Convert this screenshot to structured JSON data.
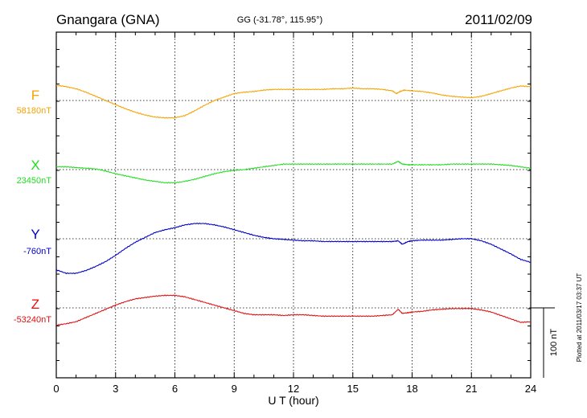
{
  "header": {
    "station": "Gnangara (GNA)",
    "coords": "GG (-31.78°, 115.95°)",
    "date": "2011/02/09"
  },
  "footer": {
    "plotted": "Plotted at 2011/03/17 03:37 UT"
  },
  "chart_data": {
    "type": "line",
    "title": "Gnangara (GNA)",
    "xlabel": "U T (hour)",
    "xlim": [
      0,
      24
    ],
    "xticks": [
      0,
      3,
      6,
      9,
      12,
      15,
      18,
      21,
      24
    ],
    "grid": true,
    "scale_bar": {
      "label": "100 nT",
      "value_nT": 100
    },
    "series": [
      {
        "name": "F",
        "baseline": "58180nT",
        "color": "#f5a300",
        "x": [
          0,
          0.5,
          1,
          1.5,
          2,
          2.5,
          3,
          3.5,
          4,
          4.5,
          5,
          5.5,
          6,
          6.5,
          7,
          7.5,
          8,
          8.5,
          9,
          9.5,
          10,
          10.5,
          11,
          11.5,
          12,
          12.5,
          13,
          13.5,
          14,
          14.5,
          15,
          15.5,
          16,
          16.5,
          17,
          17.2,
          17.4,
          17.6,
          18,
          18.5,
          19,
          19.5,
          20,
          20.5,
          21,
          21.5,
          22,
          22.5,
          23,
          23.5,
          24
        ],
        "y": [
          22,
          20,
          17,
          12,
          6,
          0,
          -6,
          -12,
          -17,
          -21,
          -24,
          -25,
          -25,
          -22,
          -15,
          -7,
          0,
          5,
          10,
          12,
          13,
          15,
          16,
          16,
          16,
          16,
          16,
          16,
          17,
          17,
          18,
          17,
          17,
          16,
          14,
          10,
          13,
          15,
          14,
          13,
          11,
          8,
          6,
          5,
          4,
          6,
          10,
          14,
          18,
          21,
          20
        ]
      },
      {
        "name": "X",
        "baseline": "23450nT",
        "color": "#22dd22",
        "x": [
          0,
          0.5,
          1,
          1.5,
          2,
          2.5,
          3,
          3.5,
          4,
          4.5,
          5,
          5.5,
          6,
          6.5,
          7,
          7.5,
          8,
          8.5,
          9,
          9.5,
          10,
          10.5,
          11,
          11.5,
          12,
          12.5,
          13,
          13.5,
          14,
          14.5,
          15,
          15.5,
          16,
          16.5,
          17,
          17.3,
          17.5,
          17.8,
          18,
          18.5,
          19,
          19.5,
          20,
          20.5,
          21,
          21.5,
          22,
          22.5,
          23,
          23.5,
          24
        ],
        "y": [
          4,
          4,
          3,
          2,
          1,
          -2,
          -6,
          -9,
          -12,
          -15,
          -17,
          -19,
          -19,
          -17,
          -14,
          -10,
          -6,
          -3,
          -1,
          0,
          2,
          4,
          6,
          8,
          8,
          8,
          8,
          8,
          8,
          8,
          8,
          8,
          8,
          8,
          8,
          12,
          8,
          7,
          7,
          7,
          7,
          7,
          8,
          8,
          8,
          8,
          8,
          7,
          6,
          4,
          2
        ]
      },
      {
        "name": "Y",
        "baseline": "-760nT",
        "color": "#0000cc",
        "x": [
          0,
          0.5,
          1,
          1.5,
          2,
          2.5,
          3,
          3.5,
          4,
          4.5,
          5,
          5.5,
          6,
          6.5,
          7,
          7.5,
          8,
          8.5,
          9,
          9.5,
          10,
          10.5,
          11,
          11.5,
          12,
          12.5,
          13,
          13.5,
          14,
          14.5,
          15,
          15.5,
          16,
          16.5,
          17,
          17.3,
          17.5,
          17.8,
          18,
          18.5,
          19,
          19.5,
          20,
          20.5,
          21,
          21.5,
          22,
          22.5,
          23,
          23.5,
          24
        ],
        "y": [
          -45,
          -50,
          -50,
          -46,
          -40,
          -33,
          -24,
          -14,
          -5,
          2,
          9,
          13,
          16,
          20,
          22,
          22,
          20,
          17,
          13,
          9,
          5,
          2,
          0,
          -1,
          -2,
          -3,
          -3,
          -4,
          -4,
          -4,
          -4,
          -4,
          -4,
          -4,
          -4,
          -3,
          -8,
          -4,
          -3,
          -2,
          -2,
          -2,
          -1,
          0,
          0,
          -3,
          -8,
          -15,
          -22,
          -30,
          -34
        ]
      },
      {
        "name": "Z",
        "baseline": "-53240nT",
        "color": "#e01010",
        "x": [
          0,
          0.5,
          1,
          1.5,
          2,
          2.5,
          3,
          3.5,
          4,
          4.5,
          5,
          5.5,
          6,
          6.5,
          7,
          7.5,
          8,
          8.5,
          9,
          9.5,
          10,
          10.5,
          11,
          11.5,
          12,
          12.5,
          13,
          13.5,
          14,
          14.5,
          15,
          15.5,
          16,
          16.5,
          17,
          17.3,
          17.5,
          17.8,
          18,
          18.5,
          19,
          19.5,
          20,
          20.5,
          21,
          21.5,
          22,
          22.5,
          23,
          23.5,
          24
        ],
        "y": [
          -25,
          -23,
          -20,
          -14,
          -8,
          -2,
          4,
          9,
          13,
          15,
          17,
          18,
          18,
          16,
          12,
          8,
          4,
          0,
          -4,
          -8,
          -10,
          -10,
          -10,
          -11,
          -10,
          -10,
          -11,
          -12,
          -12,
          -12,
          -12,
          -12,
          -12,
          -11,
          -10,
          -2,
          -8,
          -7,
          -6,
          -5,
          -3,
          -2,
          -1,
          -1,
          -1,
          -3,
          -6,
          -11,
          -16,
          -21,
          -20
        ]
      }
    ]
  }
}
